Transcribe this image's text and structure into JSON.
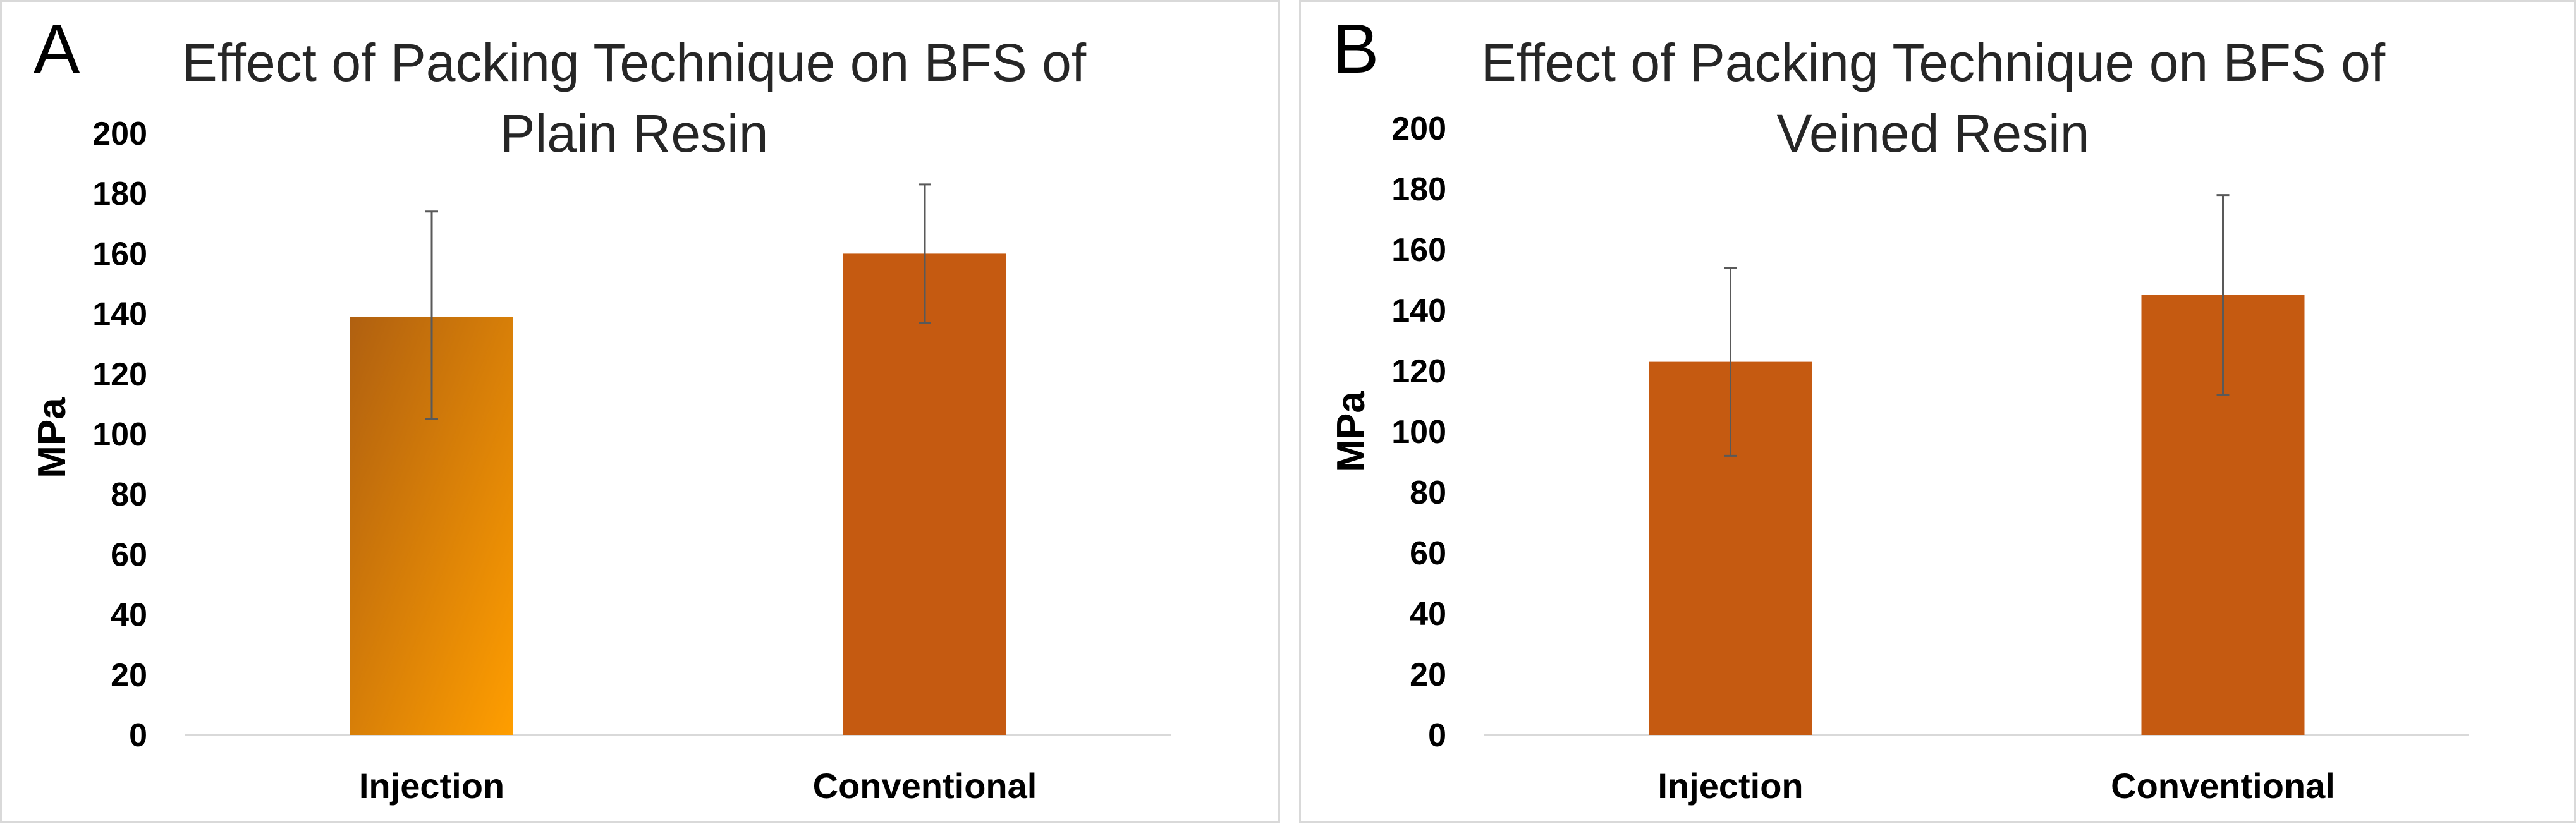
{
  "chart_data": [
    {
      "panel_label": "A",
      "type": "bar",
      "title_lines": [
        "Effect of Packing Technique on BFS of",
        "Plain Resin"
      ],
      "title": "Effect of Packing Technique on BFS of Plain Resin",
      "xlabel": "",
      "ylabel": "MPa",
      "ylim": [
        0,
        200
      ],
      "yticks": [
        "0",
        "20",
        "40",
        "60",
        "80",
        "100",
        "120",
        "140",
        "160",
        "180",
        "200"
      ],
      "categories": [
        "Injection",
        "Conventional"
      ],
      "values": [
        139,
        160
      ],
      "error_low": [
        105,
        137
      ],
      "error_high": [
        174,
        183
      ],
      "bar_colors": [
        "gradient",
        "#C55A11"
      ],
      "gradient_colors": [
        "#B06010",
        "#FF9E00"
      ]
    },
    {
      "panel_label": "B",
      "type": "bar",
      "title_lines": [
        "Effect of Packing Technique on BFS of",
        "Veined Resin"
      ],
      "title": "Effect of Packing Technique on BFS of Veined Resin",
      "xlabel": "",
      "ylabel": "MPa",
      "ylim": [
        0,
        200
      ],
      "yticks": [
        "0",
        "20",
        "40",
        "60",
        "80",
        "100",
        "120",
        "140",
        "160",
        "180",
        "200"
      ],
      "categories": [
        "Injection",
        "Conventional"
      ],
      "values": [
        123,
        145
      ],
      "error_low": [
        92,
        112
      ],
      "error_high": [
        154,
        178
      ],
      "bar_colors": [
        "#C55A11",
        "#C55A11"
      ]
    }
  ],
  "colors": {
    "axis": "#d9d9d9",
    "error_bar": "#595959",
    "text": "#000000"
  }
}
